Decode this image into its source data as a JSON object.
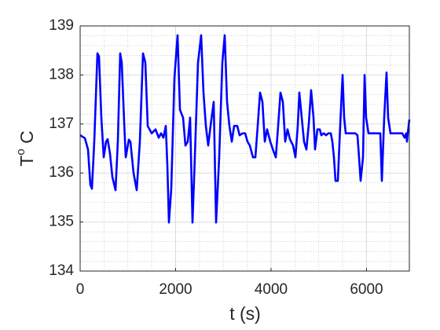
{
  "chart_data": {
    "type": "line",
    "xlabel": "t (s)",
    "ylabel": [
      "T",
      "o",
      " C"
    ],
    "xlim": [
      0,
      6897
    ],
    "ylim": [
      134,
      139
    ],
    "xticks": [
      0,
      2000,
      4000,
      6000
    ],
    "yticks": [
      134,
      135,
      136,
      137,
      138,
      139
    ],
    "grid": true,
    "minor_grid": true,
    "series": [
      {
        "color": "#0000ff",
        "x": [
          0,
          99,
          165,
          214,
          247,
          296,
          362,
          395,
          444,
          494,
          543,
          576,
          625,
          675,
          741,
          790,
          839,
          872,
          922,
          955,
          1020,
          1053,
          1119,
          1185,
          1251,
          1317,
          1366,
          1416,
          1498,
          1580,
          1646,
          1695,
          1745,
          1794,
          1827,
          1860,
          1909,
          1975,
          2041,
          2091,
          2156,
          2206,
          2255,
          2304,
          2354,
          2403,
          2469,
          2535,
          2584,
          2634,
          2683,
          2732,
          2798,
          2848,
          2913,
          2979,
          3029,
          3078,
          3127,
          3177,
          3226,
          3292,
          3341,
          3407,
          3457,
          3506,
          3555,
          3621,
          3671,
          3720,
          3769,
          3819,
          3868,
          3917,
          3983,
          4049,
          4099,
          4148,
          4197,
          4247,
          4296,
          4345,
          4395,
          4461,
          4510,
          4559,
          4592,
          4642,
          4691,
          4740,
          4790,
          4839,
          4889,
          4921,
          4971,
          5020,
          5053,
          5103,
          5152,
          5201,
          5251,
          5284,
          5317,
          5350,
          5399,
          5448,
          5498,
          5531,
          5564,
          5646,
          5761,
          5810,
          5843,
          5876,
          5926,
          5959,
          5991,
          6041,
          6222,
          6288,
          6321,
          6370,
          6419,
          6452,
          6502,
          6633,
          6749,
          6798,
          6831,
          6847,
          6864,
          6897
        ],
        "values": [
          136.77,
          136.71,
          136.48,
          135.76,
          135.68,
          136.64,
          138.44,
          138.38,
          137.13,
          136.32,
          136.64,
          136.69,
          136.4,
          135.92,
          135.65,
          136.64,
          138.44,
          138.25,
          137.04,
          136.32,
          136.68,
          136.64,
          136.0,
          135.65,
          136.64,
          138.44,
          138.25,
          136.96,
          136.81,
          136.89,
          136.72,
          136.81,
          136.72,
          136.96,
          136.16,
          134.99,
          135.68,
          137.93,
          138.81,
          137.29,
          137.13,
          136.56,
          136.64,
          137.13,
          134.99,
          136.32,
          138.25,
          138.81,
          137.64,
          136.96,
          136.56,
          136.96,
          137.45,
          134.99,
          136.32,
          138.25,
          138.81,
          137.45,
          136.96,
          136.64,
          136.96,
          136.96,
          136.77,
          136.81,
          136.81,
          136.64,
          136.56,
          136.32,
          136.32,
          136.96,
          137.64,
          137.45,
          136.64,
          136.89,
          136.64,
          136.45,
          136.32,
          136.96,
          137.64,
          137.45,
          136.64,
          136.89,
          136.69,
          136.56,
          136.32,
          136.96,
          137.64,
          137.13,
          136.64,
          136.48,
          137.0,
          137.69,
          137.13,
          136.48,
          136.89,
          136.89,
          136.77,
          136.81,
          136.77,
          136.81,
          136.81,
          136.64,
          136.32,
          135.84,
          135.84,
          136.96,
          138.0,
          137.13,
          136.81,
          136.81,
          136.81,
          136.77,
          136.32,
          135.84,
          136.32,
          138.0,
          137.13,
          136.81,
          136.81,
          136.81,
          135.84,
          137.13,
          138.05,
          137.13,
          136.81,
          136.81,
          136.81,
          136.72,
          136.81,
          136.64,
          136.81,
          137.09
        ]
      }
    ]
  }
}
